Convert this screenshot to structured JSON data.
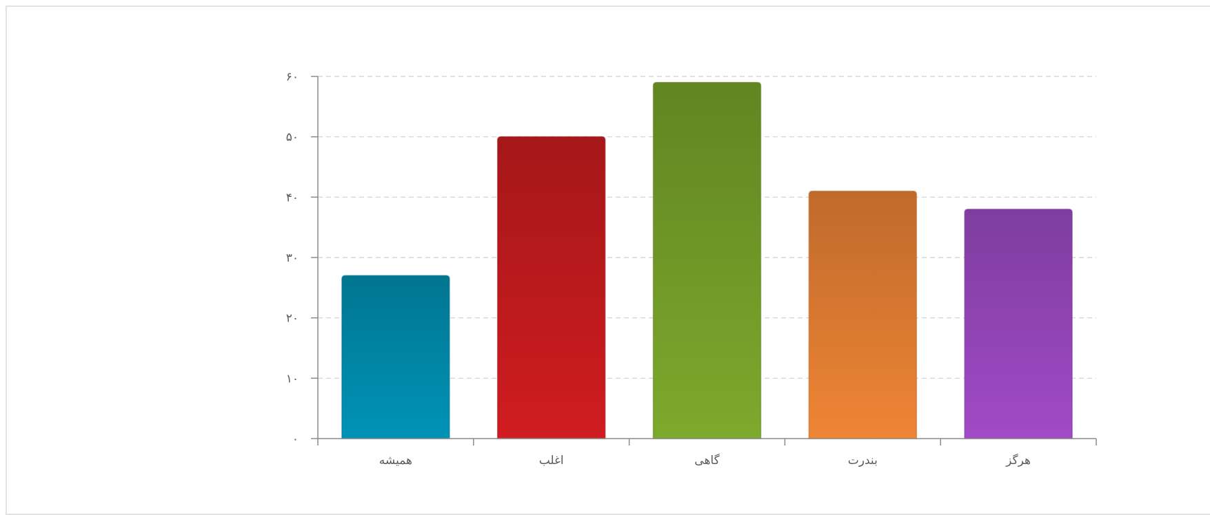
{
  "chart_data": {
    "type": "bar",
    "categories": [
      "همیشه",
      "اغلب",
      "گاهی",
      "بندرت",
      "هرگز"
    ],
    "values": [
      27,
      50,
      59,
      41,
      38
    ],
    "colors": [
      {
        "top": "#007590",
        "bottom": "#0093b7"
      },
      {
        "top": "#a51719",
        "bottom": "#d01c20"
      },
      {
        "top": "#618521",
        "bottom": "#7da92d"
      },
      {
        "top": "#bf6a2c",
        "bottom": "#ef8535"
      },
      {
        "top": "#7e3d9f",
        "bottom": "#a14ac6"
      }
    ],
    "ylim": [
      0,
      60
    ],
    "yticks": [
      0,
      10,
      20,
      30,
      40,
      50,
      60
    ],
    "ytick_labels": [
      "۰",
      "۱۰",
      "۲۰",
      "۳۰",
      "۴۰",
      "۵۰",
      "۶۰"
    ],
    "grid": true,
    "title": "",
    "xlabel": "",
    "ylabel": ""
  }
}
